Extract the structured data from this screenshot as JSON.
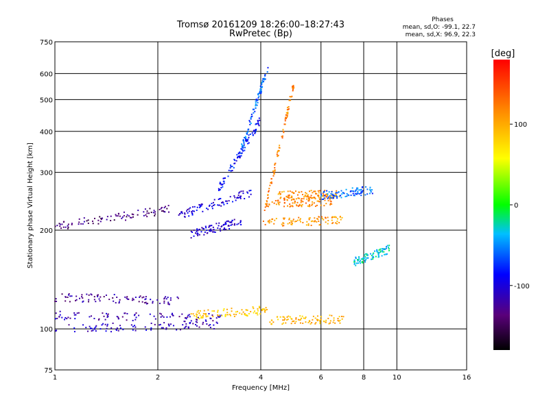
{
  "header": {
    "title": "Tromsø 20161209 18:26:00–18:27:43",
    "subtitle": "RwPretec (Bp)",
    "phases_title": "Phases",
    "phases_line1": "mean, sd,O: -99.1, 22.7",
    "phases_line2": "mean, sd,X:  96.9, 22.3"
  },
  "chart_data": {
    "type": "scatter",
    "xlabel": "Frequency [MHz]",
    "ylabel": "Stationary phase Virtual Height [km]",
    "x_scale": "log2",
    "y_scale": "log",
    "xlim": [
      1,
      16
    ],
    "ylim": [
      75,
      750
    ],
    "x_ticks": [
      1,
      2,
      4,
      6,
      8,
      10,
      16
    ],
    "y_ticks": [
      75,
      100,
      200,
      300,
      400,
      500,
      600,
      750
    ],
    "grid": true,
    "colorbar": {
      "title": "[deg]",
      "range": [
        -180,
        180
      ],
      "ticks": [
        100,
        0,
        -100
      ]
    },
    "series": [
      {
        "x": [
          1.0,
          3.0
        ],
        "y": [
          100,
          103
        ],
        "phase": -110
      },
      {
        "x": [
          1.0,
          3.1
        ],
        "y": [
          110,
          108
        ],
        "phase": -115
      },
      {
        "x": [
          1.0,
          2.3
        ],
        "y": [
          125,
          122
        ],
        "phase": -125
      },
      {
        "x": [
          1.0,
          2.2
        ],
        "y": [
          205,
          232
        ],
        "phase": -135
      },
      {
        "x": [
          2.3,
          3.8
        ],
        "y": [
          222,
          262
        ],
        "phase": -100
      },
      {
        "x": [
          2.5,
          3.5
        ],
        "y": [
          195,
          212
        ],
        "phase": -105
      },
      {
        "x": [
          3.0,
          4.0
        ],
        "y": [
          265,
          435
        ],
        "phase": -85
      },
      {
        "x": [
          3.5,
          4.2
        ],
        "y": [
          350,
          625
        ],
        "phase": -60
      },
      {
        "x": [
          4.1,
          5.0
        ],
        "y": [
          225,
          560
        ],
        "phase": 120
      },
      {
        "x": [
          4.0,
          7.0
        ],
        "y": [
          210,
          215
        ],
        "phase": 110
      },
      {
        "x": [
          4.2,
          6.5
        ],
        "y": [
          240,
          245
        ],
        "phase": 120
      },
      {
        "x": [
          4.5,
          6.8
        ],
        "y": [
          255,
          258
        ],
        "phase": 115
      },
      {
        "x": [
          2.5,
          4.2
        ],
        "y": [
          110,
          114
        ],
        "phase": 85
      },
      {
        "x": [
          4.2,
          7.0
        ],
        "y": [
          106,
          107
        ],
        "phase": 95
      },
      {
        "x": [
          6.0,
          8.5
        ],
        "y": [
          255,
          265
        ],
        "phase": -60
      },
      {
        "x": [
          7.5,
          9.5
        ],
        "y": [
          160,
          175
        ],
        "phase": -30
      }
    ]
  }
}
